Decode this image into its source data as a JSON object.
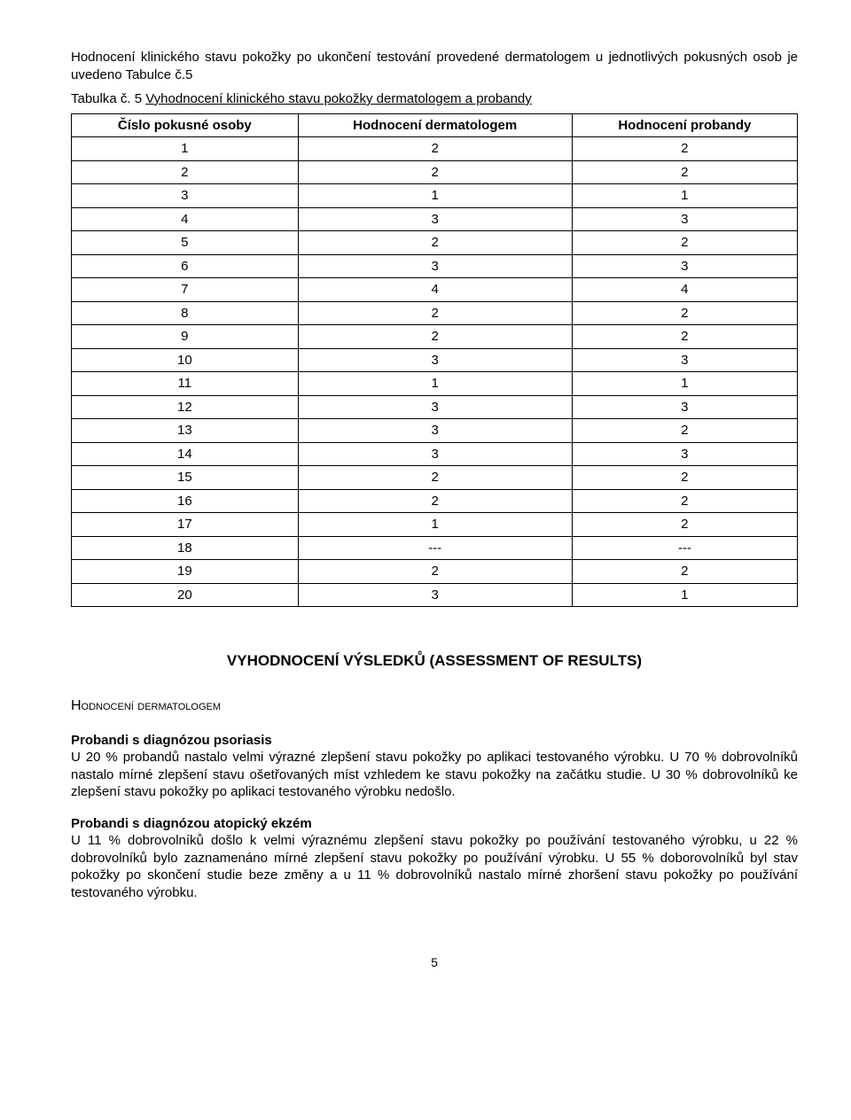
{
  "intro": "Hodnocení klinického stavu pokožky po ukončení testování provedené dermatologem u jednotlivých pokusných osob je uvedeno Tabulce č.5",
  "tableCaption": {
    "prefix": "Tabulka č. 5 ",
    "underlined": "Vyhodnocení klinického stavu pokožky dermatologem a probandy"
  },
  "table": {
    "headers": [
      "Číslo pokusné osoby",
      "Hodnocení dermatologem",
      "Hodnocení probandy"
    ],
    "rows": [
      [
        "1",
        "2",
        "2"
      ],
      [
        "2",
        "2",
        "2"
      ],
      [
        "3",
        "1",
        "1"
      ],
      [
        "4",
        "3",
        "3"
      ],
      [
        "5",
        "2",
        "2"
      ],
      [
        "6",
        "3",
        "3"
      ],
      [
        "7",
        "4",
        "4"
      ],
      [
        "8",
        "2",
        "2"
      ],
      [
        "9",
        "2",
        "2"
      ],
      [
        "10",
        "3",
        "3"
      ],
      [
        "11",
        "1",
        "1"
      ],
      [
        "12",
        "3",
        "3"
      ],
      [
        "13",
        "3",
        "2"
      ],
      [
        "14",
        "3",
        "3"
      ],
      [
        "15",
        "2",
        "2"
      ],
      [
        "16",
        "2",
        "2"
      ],
      [
        "17",
        "1",
        "2"
      ],
      [
        "18",
        "---",
        "---"
      ],
      [
        "19",
        "2",
        "2"
      ],
      [
        "20",
        "3",
        "1"
      ]
    ]
  },
  "sectionHeading": "VYHODNOCENÍ VÝSLEDKŮ (ASSESSMENT OF RESULTS)",
  "subHeading": "Hodnocení dermatologem",
  "block1": {
    "title": "Probandi s diagnózou psoriasis",
    "body": "U 20 % probandů nastalo velmi výrazné zlepšení stavu pokožky po aplikaci testovaného výrobku. U 70 % dobrovolníků nastalo mírné zlepšení stavu ošetřovaných míst vzhledem ke stavu pokožky na začátku studie. U 30 % dobrovolníků ke zlepšení stavu pokožky po aplikaci testovaného výrobku nedošlo."
  },
  "block2": {
    "title": "Probandi s diagnózou atopický ekzém",
    "body": "U 11 % dobrovolníků došlo k velmi výraznému zlepšení stavu pokožky po používání testovaného výrobku, u 22 % dobrovolníků bylo zaznamenáno mírné zlepšení stavu pokožky po používání výrobku. U 55 % doborovolníků byl stav pokožky po skončení studie beze změny a u 11 % dobrovolníků nastalo mírné zhoršení stavu pokožky po používání testovaného výrobku."
  },
  "pageNumber": "5"
}
